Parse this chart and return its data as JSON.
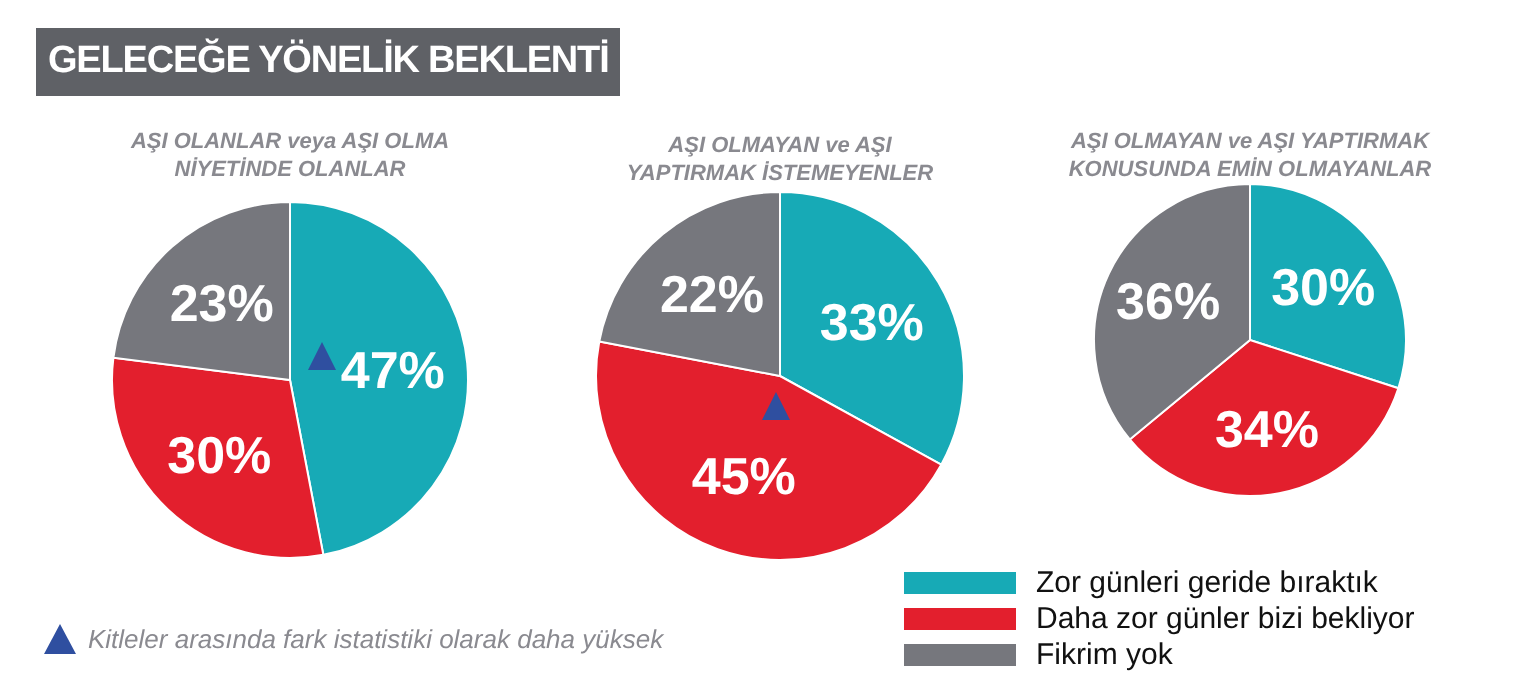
{
  "chart_data": [
    {
      "type": "pie",
      "title": "GELECEĞE YÖNELİK BEKLENTİ",
      "subtitle": "AŞI OLANLAR  veya AŞI OLMA NİYETİNDE OLANLAR",
      "categories": [
        "Zor günleri geride bıraktık",
        "Daha zor günler bizi bekliyor",
        "Fikrim yok"
      ],
      "values": [
        47,
        30,
        23
      ],
      "value_labels": [
        "47%",
        "30%",
        "23%"
      ],
      "colors": [
        "#17aab6",
        "#e31f2d",
        "#76777d"
      ],
      "legend": "bottom right",
      "annotations": [
        "Kitleler arasında fark istatistiki olarak daha yüksek"
      ]
    },
    {
      "type": "pie",
      "title": "AŞI OLMAYAN ve AŞI YAPTIRMAK İSTEMEYENLER",
      "categories": [
        null,
        null,
        null
      ],
      "values": [
        33,
        45,
        22
      ],
      "value_labels": [
        "33%",
        "45%",
        "22%"
      ],
      "colors": [
        "#17aab6",
        "#e31f2d",
        "#76777d"
      ]
    },
    {
      "type": "pie",
      "title": "AŞI OLMAYAN ve AŞI YAPTIRMAK KONUSUNDA EMİN OLMAYANLAR",
      "categories": [
        null,
        null,
        null
      ],
      "values": [
        30,
        34,
        36
      ],
      "value_labels": [
        "30%",
        "34%",
        "36%"
      ],
      "colors": [
        "#17aab6",
        "#e31f2d",
        "#76777d"
      ]
    }
  ]
}
